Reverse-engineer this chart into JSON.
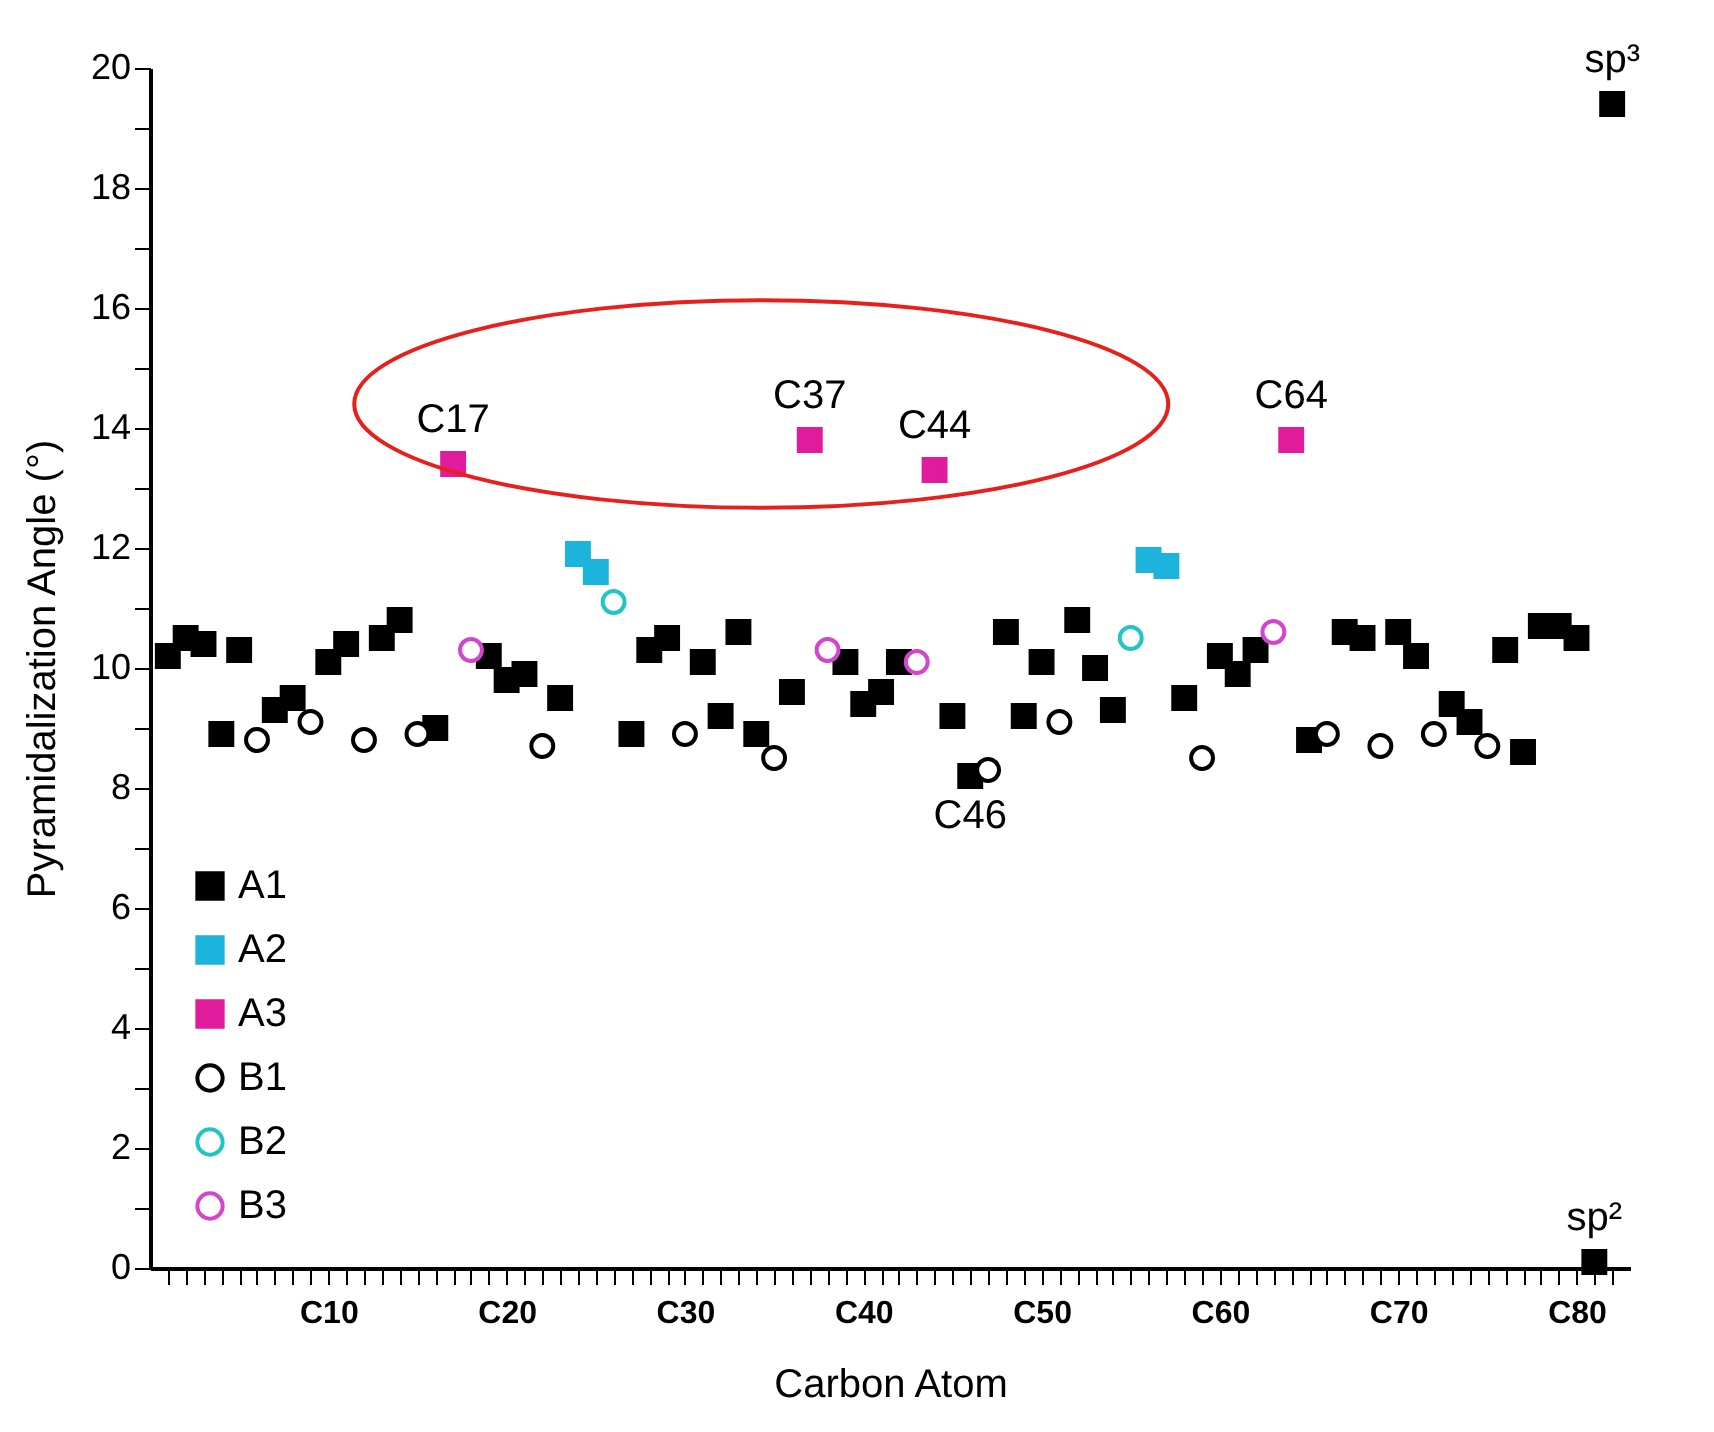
{
  "chart_data": {
    "type": "scatter",
    "xlabel": "Carbon Atom",
    "ylabel": "Pyramidalization Angle (°)",
    "categories": [
      null,
      null,
      null,
      null,
      null,
      null,
      null,
      null,
      null,
      "C10",
      null,
      null,
      null,
      null,
      null,
      null,
      null,
      null,
      null,
      "C20",
      null,
      null,
      null,
      null,
      null,
      null,
      null,
      null,
      null,
      "C30",
      null,
      null,
      null,
      null,
      null,
      null,
      null,
      null,
      null,
      "C40",
      null,
      null,
      null,
      null,
      null,
      null,
      null,
      null,
      null,
      "C50",
      null,
      null,
      null,
      null,
      null,
      null,
      null,
      null,
      null,
      "C60",
      null,
      null,
      null,
      null,
      null,
      null,
      null,
      null,
      null,
      "C70",
      null,
      null,
      null,
      null,
      null,
      null,
      null,
      null,
      null,
      "C80",
      null,
      null
    ],
    "ylim": [
      0,
      20
    ],
    "yticks": [
      0,
      {
        "value": 1,
        "label": null
      },
      2,
      {
        "value": 3,
        "label": null
      },
      4,
      {
        "value": 5,
        "label": null
      },
      6,
      {
        "value": 7,
        "label": null
      },
      8,
      {
        "value": 9,
        "label": null
      },
      10,
      {
        "value": 11,
        "label": null
      },
      12,
      {
        "value": 13,
        "label": null
      },
      14,
      {
        "value": 15,
        "label": null
      },
      16,
      {
        "value": 17,
        "label": null
      },
      18,
      {
        "value": 19,
        "label": null
      },
      20
    ],
    "grid": false,
    "legend": "bottom left",
    "series": [
      {
        "name": "A1",
        "color": "#000000",
        "marker": "square",
        "values": [
          10.2,
          10.5,
          10.4,
          8.9,
          10.3,
          null,
          9.3,
          9.5,
          null,
          10.1,
          10.4,
          null,
          10.5,
          10.8,
          null,
          9.0,
          null,
          null,
          10.2,
          9.8,
          9.9,
          null,
          9.5,
          null,
          null,
          null,
          8.9,
          10.3,
          10.5,
          null,
          10.1,
          9.2,
          10.6,
          8.9,
          null,
          9.6,
          null,
          null,
          10.1,
          9.4,
          9.6,
          10.1,
          null,
          null,
          9.2,
          8.2,
          null,
          10.6,
          9.2,
          10.1,
          null,
          10.8,
          10.0,
          9.3,
          null,
          null,
          null,
          9.5,
          null,
          10.2,
          9.9,
          10.3,
          null,
          null,
          8.8,
          null,
          10.6,
          10.5,
          null,
          10.6,
          10.2,
          null,
          9.4,
          9.1,
          null,
          10.3,
          8.6,
          10.7,
          10.7,
          10.5,
          0.1,
          19.4
        ]
      },
      {
        "name": "A2",
        "color": "#1cb4dc",
        "marker": "square",
        "values": [
          null,
          null,
          null,
          null,
          null,
          null,
          null,
          null,
          null,
          null,
          null,
          null,
          null,
          null,
          null,
          null,
          null,
          null,
          null,
          null,
          null,
          null,
          null,
          11.9,
          11.6,
          null,
          null,
          null,
          null,
          null,
          null,
          null,
          null,
          null,
          null,
          null,
          null,
          null,
          null,
          null,
          null,
          null,
          null,
          null,
          null,
          null,
          null,
          null,
          null,
          null,
          null,
          null,
          null,
          null,
          null,
          11.8,
          11.7,
          null,
          null,
          null,
          null,
          null,
          null,
          null,
          null,
          null,
          null,
          null,
          null,
          null,
          null,
          null,
          null,
          null,
          null,
          null,
          null,
          null,
          null,
          null,
          null,
          null
        ]
      },
      {
        "name": "A3",
        "color": "#e01c9c",
        "marker": "square",
        "values": [
          null,
          null,
          null,
          null,
          null,
          null,
          null,
          null,
          null,
          null,
          null,
          null,
          null,
          null,
          null,
          null,
          13.4,
          null,
          null,
          null,
          null,
          null,
          null,
          null,
          null,
          null,
          null,
          null,
          null,
          null,
          null,
          null,
          null,
          null,
          null,
          null,
          13.8,
          null,
          null,
          null,
          null,
          null,
          null,
          13.3,
          null,
          null,
          null,
          null,
          null,
          null,
          null,
          null,
          null,
          null,
          null,
          null,
          null,
          null,
          null,
          null,
          null,
          null,
          null,
          13.8,
          null,
          null,
          null,
          null,
          null,
          null,
          null,
          null,
          null,
          null,
          null,
          null,
          null,
          null,
          null,
          null,
          null,
          null
        ]
      },
      {
        "name": "B1",
        "color": "#000000",
        "marker": "circle",
        "values": [
          null,
          null,
          null,
          null,
          null,
          8.8,
          null,
          null,
          9.1,
          null,
          null,
          8.8,
          null,
          null,
          8.9,
          null,
          null,
          null,
          null,
          null,
          null,
          8.7,
          null,
          null,
          null,
          null,
          null,
          null,
          null,
          8.9,
          null,
          null,
          null,
          null,
          8.5,
          null,
          null,
          null,
          null,
          null,
          null,
          null,
          null,
          null,
          null,
          null,
          8.3,
          null,
          null,
          null,
          9.1,
          null,
          null,
          null,
          null,
          null,
          null,
          null,
          8.5,
          null,
          null,
          null,
          null,
          null,
          null,
          8.9,
          null,
          null,
          8.7,
          null,
          null,
          8.9,
          null,
          null,
          8.7,
          null,
          null,
          null,
          null,
          null,
          null,
          null
        ]
      },
      {
        "name": "B2",
        "color": "#22c4c4",
        "marker": "circle",
        "values": [
          null,
          null,
          null,
          null,
          null,
          null,
          null,
          null,
          null,
          null,
          null,
          null,
          null,
          null,
          null,
          null,
          null,
          null,
          null,
          null,
          null,
          null,
          null,
          null,
          null,
          11.1,
          null,
          null,
          null,
          null,
          null,
          null,
          null,
          null,
          null,
          null,
          null,
          null,
          null,
          null,
          null,
          null,
          null,
          null,
          null,
          null,
          null,
          null,
          null,
          null,
          null,
          null,
          null,
          null,
          10.5,
          null,
          null,
          null,
          null,
          null,
          null,
          null,
          null,
          null,
          null,
          null,
          null,
          null,
          null,
          null,
          null,
          null,
          null,
          null,
          null,
          null,
          null,
          null,
          null,
          null,
          null,
          null
        ]
      },
      {
        "name": "B3",
        "color": "#d444cc",
        "marker": "circle",
        "values": [
          null,
          null,
          null,
          null,
          null,
          null,
          null,
          null,
          null,
          null,
          null,
          null,
          null,
          null,
          null,
          null,
          null,
          10.3,
          null,
          null,
          null,
          null,
          null,
          null,
          null,
          null,
          null,
          null,
          null,
          null,
          null,
          null,
          null,
          null,
          null,
          null,
          null,
          10.3,
          null,
          null,
          null,
          null,
          10.1,
          null,
          null,
          null,
          null,
          null,
          null,
          null,
          null,
          null,
          null,
          null,
          null,
          null,
          null,
          null,
          null,
          null,
          null,
          null,
          10.6,
          null,
          null,
          null,
          null,
          null,
          null,
          null,
          null,
          null,
          null,
          null,
          null,
          null,
          null,
          null,
          null,
          null,
          null,
          null
        ]
      }
    ],
    "annotations": [
      {
        "text": "C17",
        "y": 13.4
      },
      {
        "text": "C37",
        "y": 13.8
      },
      {
        "text": "C44",
        "y": 13.3
      },
      {
        "text": "C46",
        "y": 8.2
      },
      {
        "text": "C64",
        "y": 13.8
      },
      {
        "text": "sp³",
        "y": 19.4
      },
      {
        "text": "sp²",
        "y": 0.1
      }
    ]
  }
}
